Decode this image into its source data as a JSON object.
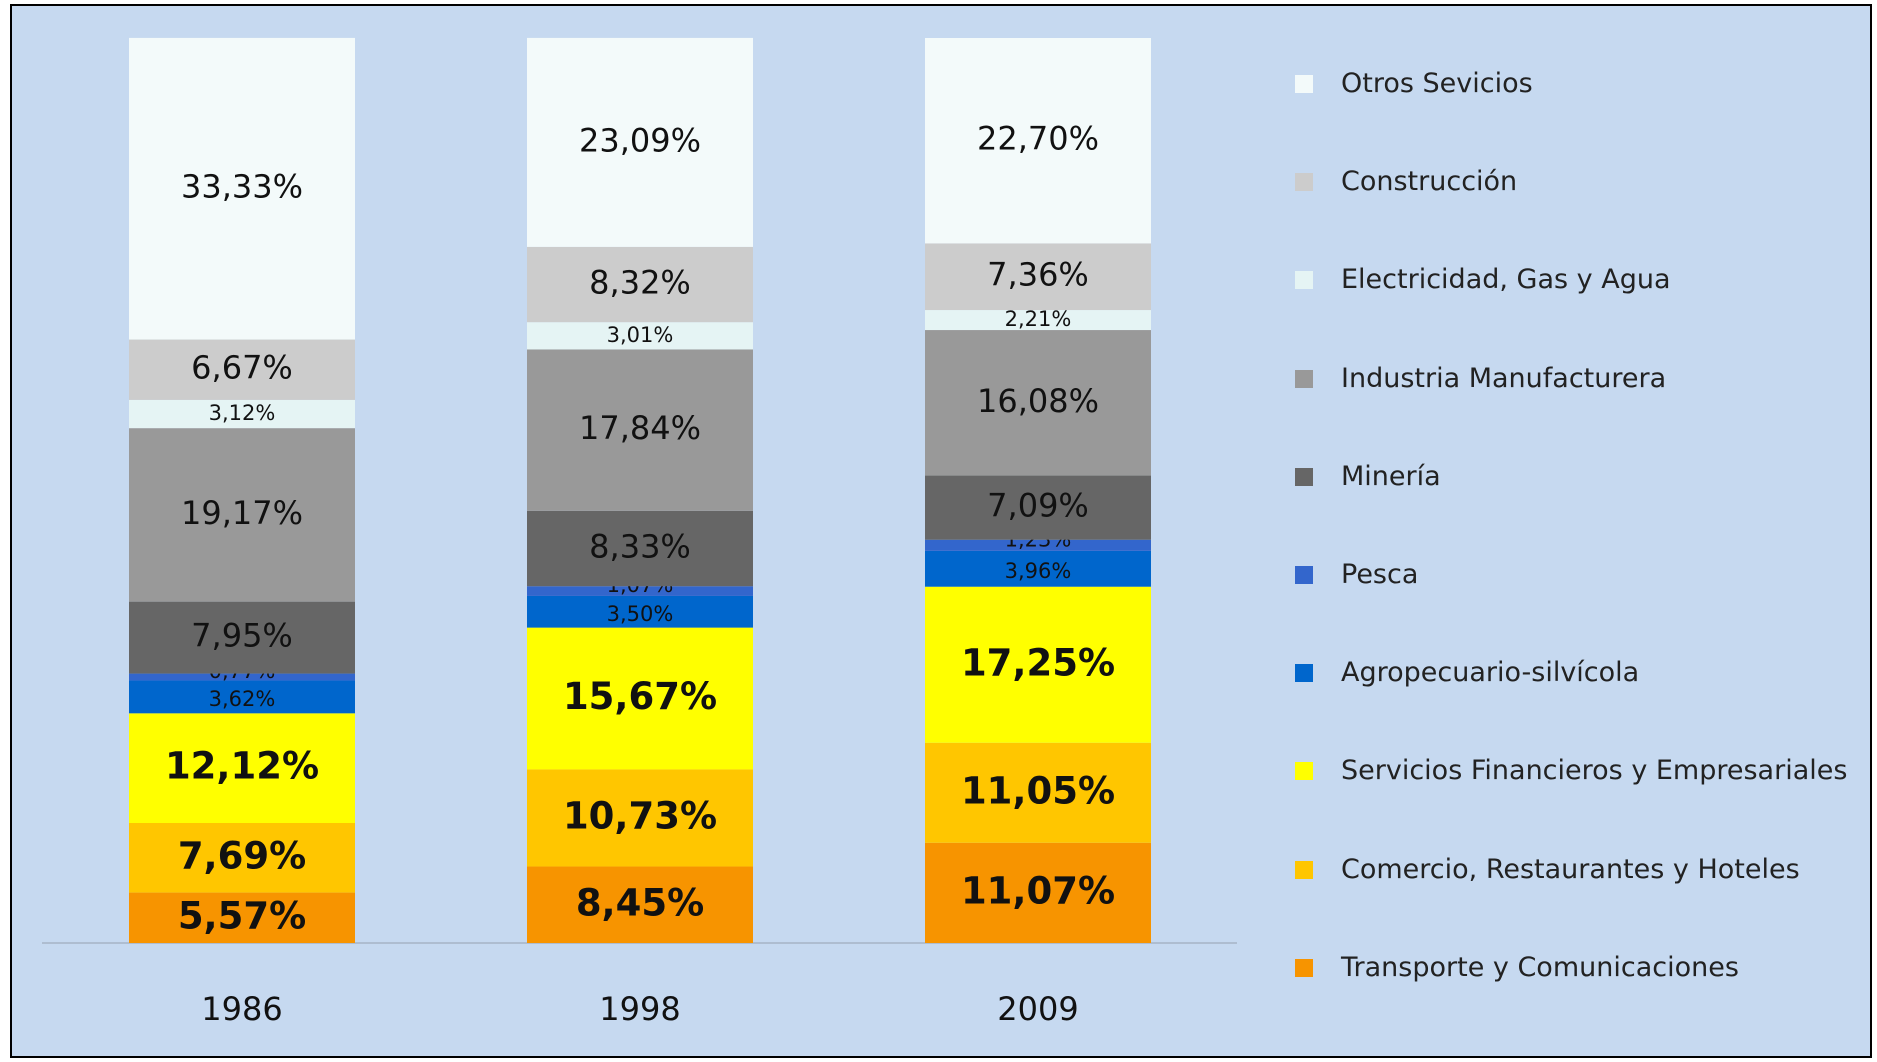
{
  "chart_data": {
    "type": "stacked_bar",
    "categories": [
      "1986",
      "1998",
      "2009"
    ],
    "ylim": [
      0,
      100
    ],
    "series": [
      {
        "name": "Transporte y Comunicaciones",
        "color": "#f79400",
        "values": [
          5.57,
          8.45,
          11.07
        ],
        "value_labels": [
          "5,57%",
          "8,45%",
          "11,07%"
        ]
      },
      {
        "name": "Comercio, Restaurantes y Hoteles",
        "color": "#ffc600",
        "values": [
          7.69,
          10.73,
          11.05
        ],
        "value_labels": [
          "7,69%",
          "10,73%",
          "11,05%"
        ]
      },
      {
        "name": "Servicios Financieros y Empresariales",
        "color": "#ffff00",
        "values": [
          12.12,
          15.67,
          17.25
        ],
        "value_labels": [
          "12,12%",
          "15,67%",
          "17,25%"
        ]
      },
      {
        "name": "Agropecuario-silvícola",
        "color": "#0066cc",
        "values": [
          3.62,
          3.5,
          3.96
        ],
        "value_labels": [
          "3,62%",
          "3,50%",
          "3,96%"
        ]
      },
      {
        "name": "Pesca",
        "color": "#3366cc",
        "values": [
          0.77,
          1.07,
          1.23
        ],
        "value_labels": [
          "0,77%",
          "1,07%",
          "1,23%"
        ]
      },
      {
        "name": "Minería",
        "color": "#666666",
        "values": [
          7.95,
          8.33,
          7.09
        ],
        "value_labels": [
          "7,95%",
          "8,33%",
          "7,09%"
        ]
      },
      {
        "name": "Industria Manufacturera",
        "color": "#999999",
        "values": [
          19.17,
          17.84,
          16.08
        ],
        "value_labels": [
          "19,17%",
          "17,84%",
          "16,08%"
        ]
      },
      {
        "name": "Electricidad, Gas y Agua",
        "color": "#e5f4f4",
        "values": [
          3.12,
          3.01,
          2.21
        ],
        "value_labels": [
          "3,12%",
          "3,01%",
          "2,21%"
        ]
      },
      {
        "name": "Construcción",
        "color": "#cccccc",
        "values": [
          6.67,
          8.32,
          7.36
        ],
        "value_labels": [
          "6,67%",
          "8,32%",
          "7,36%"
        ]
      },
      {
        "name": "Otros Sevicios",
        "color": "#f3fafa",
        "values": [
          33.33,
          23.09,
          22.7
        ],
        "value_labels": [
          "33,33%",
          "23,09%",
          "22,70%"
        ]
      }
    ]
  }
}
